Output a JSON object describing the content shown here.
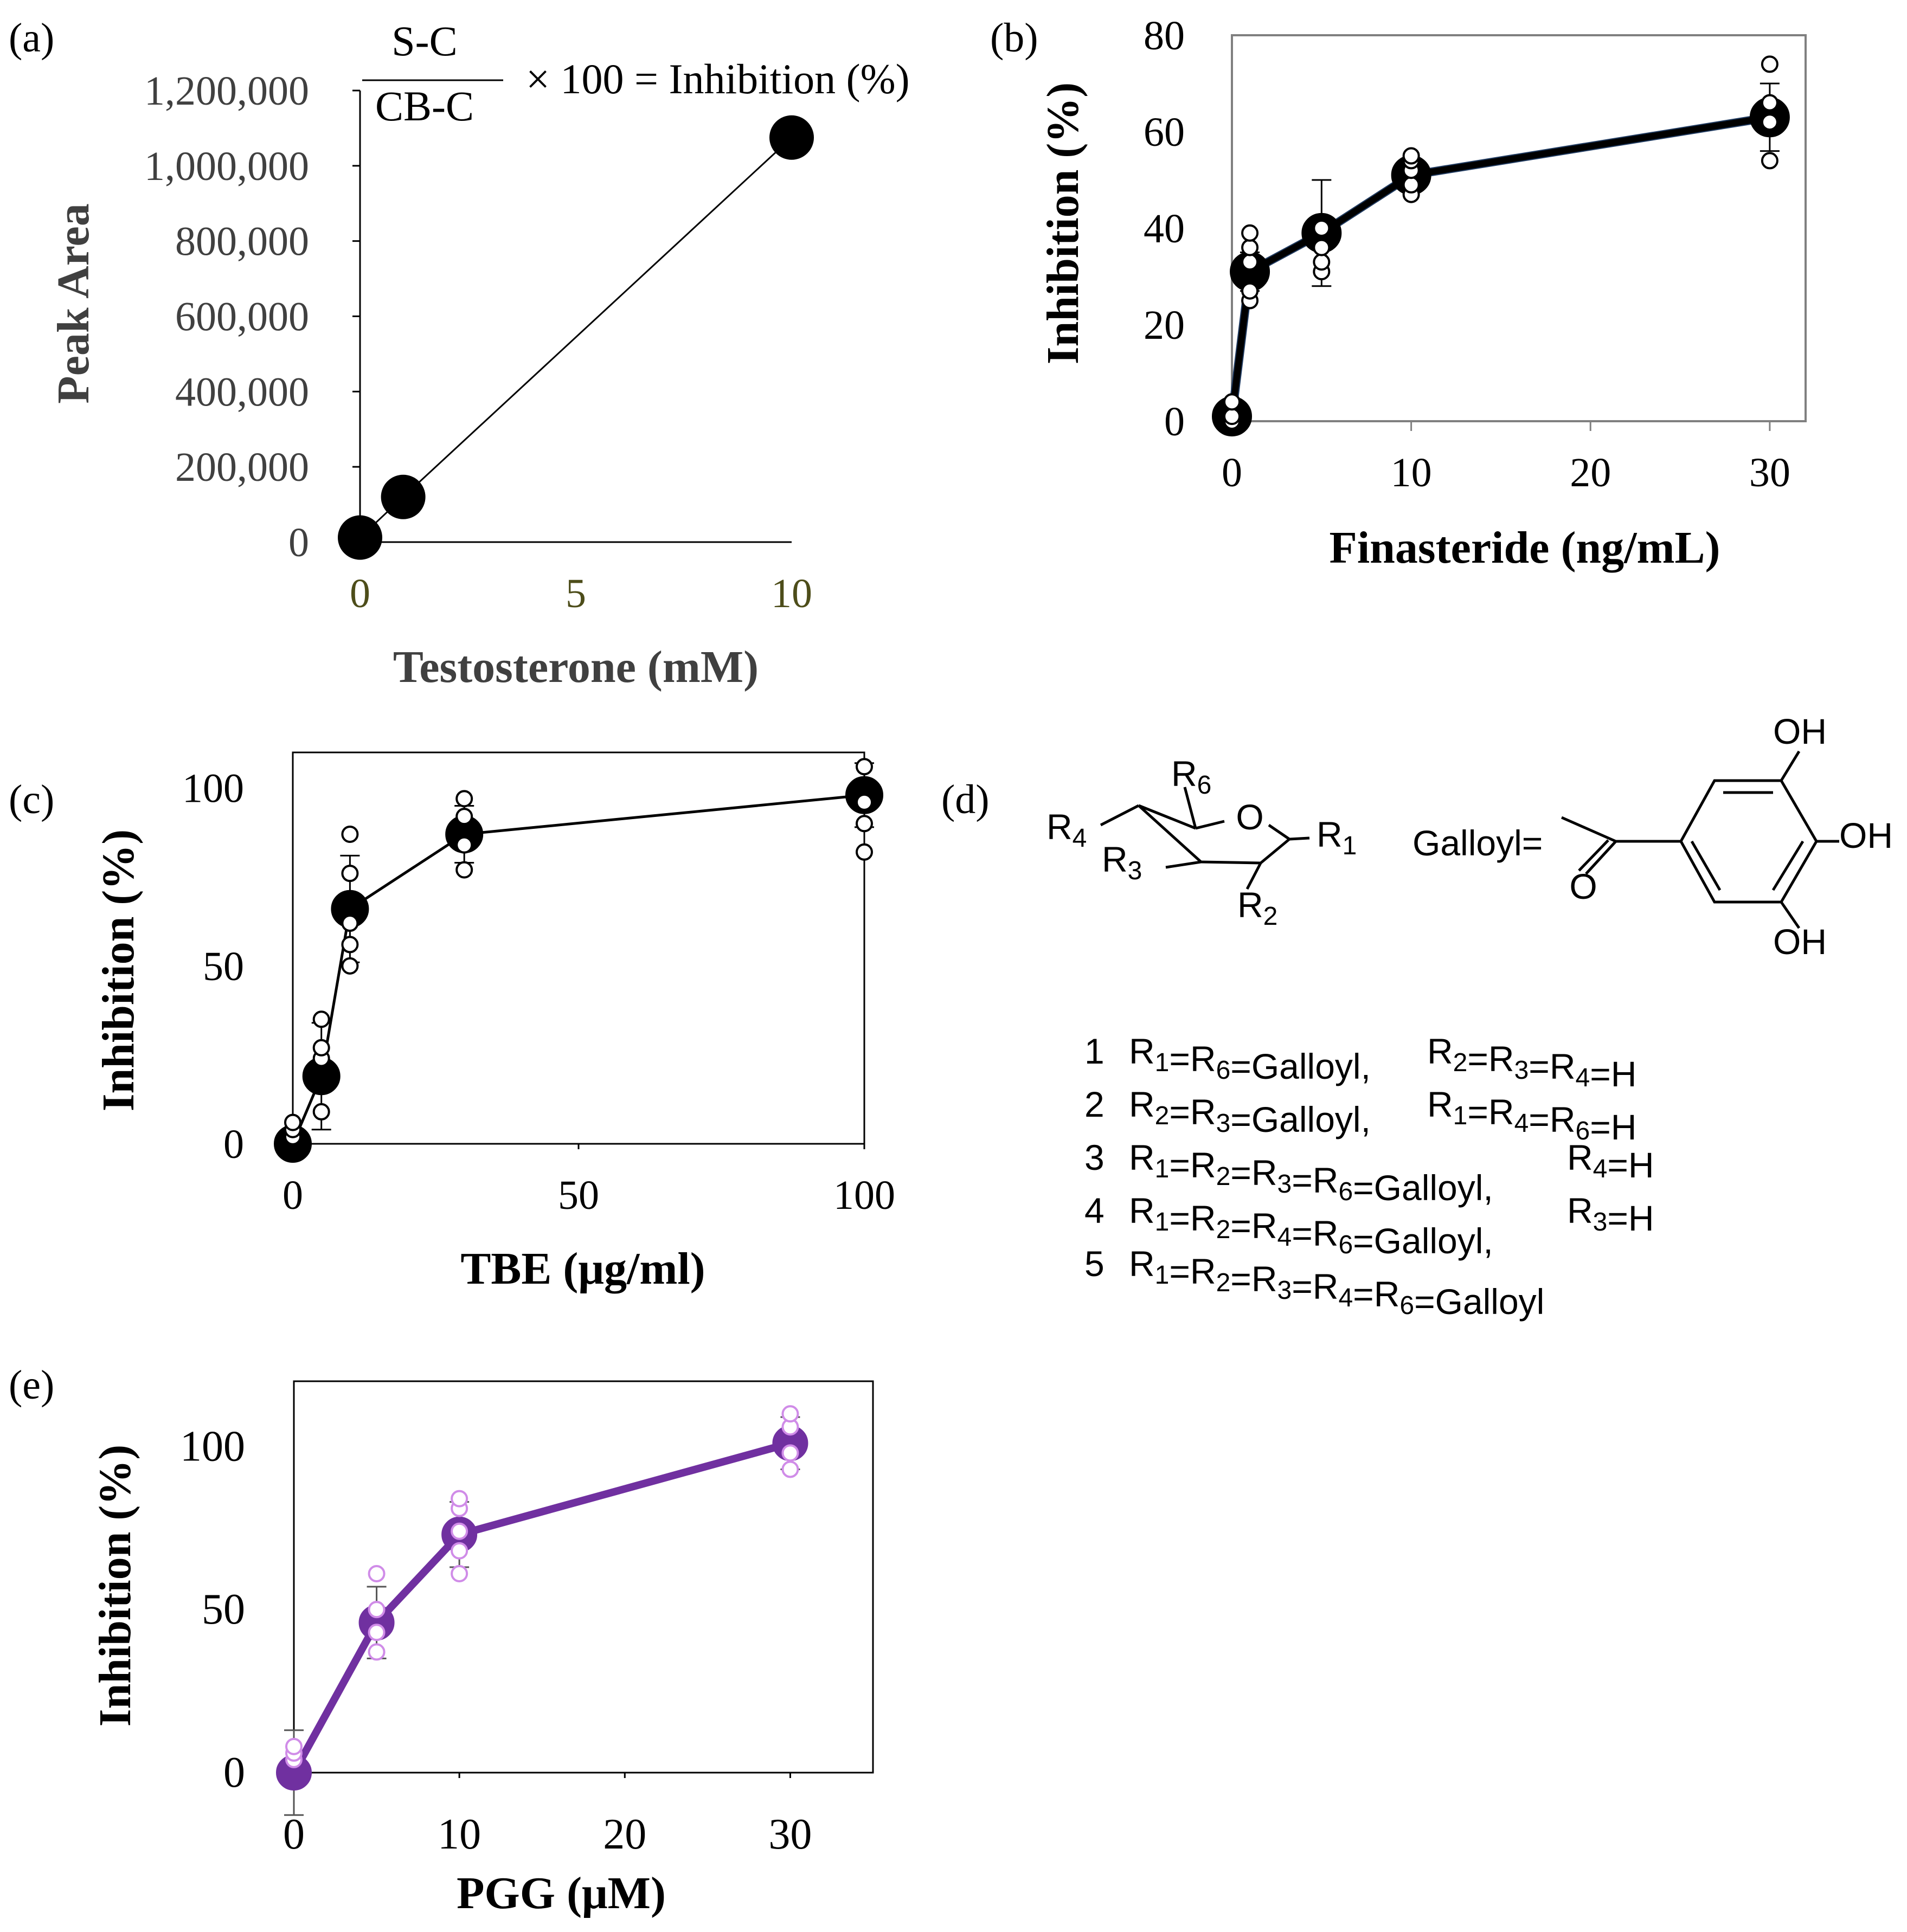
{
  "chart_data": [
    {
      "panel": "(a)",
      "type": "line",
      "xlabel": "Testosterone (mM)",
      "ylabel": "Peak Area",
      "xlim": [
        0,
        10
      ],
      "ylim": [
        0,
        1200000
      ],
      "xticks": [
        "0",
        "5",
        "10"
      ],
      "yticks": [
        "0",
        "200,000",
        "400,000",
        "600,000",
        "800,000",
        "1,000,000",
        "1,200,000"
      ],
      "annotation": {
        "numerator": "S-C",
        "denominator": "CB-C",
        "suffix": "× 100 = Inhibition (%)"
      },
      "series": [
        {
          "name": "peak area",
          "x": [
            0,
            1,
            10
          ],
          "y": [
            12000,
            120000,
            1075000
          ]
        }
      ]
    },
    {
      "panel": "(b)",
      "type": "line",
      "xlabel": "Finasteride (ng/mL)",
      "ylabel": "Inhibition (%)",
      "xlim": [
        0,
        32
      ],
      "ylim": [
        0,
        80
      ],
      "xticks": [
        "0",
        "10",
        "20",
        "30"
      ],
      "yticks": [
        "0",
        "20",
        "40",
        "60",
        "80"
      ],
      "color": "#000000",
      "series": [
        {
          "name": "mean",
          "x": [
            0,
            1,
            5,
            10,
            30
          ],
          "y": [
            1,
            31,
            39,
            51,
            63
          ],
          "err": [
            2,
            4,
            11,
            3,
            7
          ]
        }
      ],
      "replicates": [
        {
          "x": 0,
          "y": [
            0,
            1,
            4
          ]
        },
        {
          "x": 1,
          "y": [
            25,
            27,
            33,
            36,
            39
          ]
        },
        {
          "x": 5,
          "y": [
            31,
            33,
            36,
            40
          ]
        },
        {
          "x": 10,
          "y": [
            47,
            49,
            52,
            54,
            55
          ]
        },
        {
          "x": 30,
          "y": [
            54,
            62,
            66,
            74
          ]
        }
      ]
    },
    {
      "panel": "(c)",
      "type": "line",
      "xlabel": "TBE (μg/ml)",
      "ylabel": "Inhibition (%)",
      "xlim": [
        0,
        100
      ],
      "ylim": [
        0,
        110
      ],
      "xticks": [
        "0",
        "50",
        "100"
      ],
      "yticks": [
        "0",
        "50",
        "100"
      ],
      "color": "#000000",
      "series": [
        {
          "name": "mean",
          "x": [
            0,
            5,
            10,
            30,
            100
          ],
          "y": [
            0,
            19,
            66,
            87,
            98
          ],
          "err": [
            3,
            15,
            15,
            8,
            9
          ]
        }
      ],
      "replicates": [
        {
          "x": 0,
          "y": [
            2,
            4,
            6
          ]
        },
        {
          "x": 5,
          "y": [
            9,
            24,
            27,
            35
          ]
        },
        {
          "x": 10,
          "y": [
            50,
            56,
            62,
            76,
            87
          ]
        },
        {
          "x": 30,
          "y": [
            77,
            84,
            92,
            97
          ]
        },
        {
          "x": 100,
          "y": [
            82,
            90,
            96,
            106
          ]
        }
      ]
    },
    {
      "panel": "(e)",
      "type": "line",
      "xlabel": "PGG (μM)",
      "ylabel": "Inhibition (%)",
      "xlim": [
        0,
        35
      ],
      "ylim": [
        0,
        120
      ],
      "xticks": [
        "0",
        "10",
        "20",
        "30"
      ],
      "yticks": [
        "0",
        "50",
        "100"
      ],
      "color": "#7030a0",
      "replicate_color": "#d08ce8",
      "series": [
        {
          "name": "mean",
          "x": [
            0,
            5,
            10,
            30
          ],
          "y": [
            0,
            46,
            73,
            101
          ],
          "err": [
            13,
            11,
            10,
            8
          ]
        }
      ],
      "replicates": [
        {
          "x": 0,
          "y": [
            4,
            6,
            8
          ]
        },
        {
          "x": 5,
          "y": [
            37,
            43,
            50,
            61
          ]
        },
        {
          "x": 10,
          "y": [
            61,
            68,
            74,
            81,
            84
          ]
        },
        {
          "x": 30,
          "y": [
            93,
            98,
            106,
            110
          ]
        }
      ]
    }
  ],
  "panel_labels": {
    "a": "(a)",
    "b": "(b)",
    "c": "(c)",
    "d": "(d)",
    "e": "(e)"
  },
  "structure": {
    "ring_O": "O",
    "R1": "R1",
    "R2": "R2",
    "R3": "R3",
    "R4": "R4",
    "R6": "R6",
    "galloyl_label": "Galloyl=",
    "carbonyl_O": "O",
    "OH_top": "OH",
    "OH_mid": "OH",
    "OH_bottom": "OH",
    "compounds": [
      {
        "num": "1",
        "a": "R1=R6=Galloyl,",
        "b": "R2=R3=R4=H"
      },
      {
        "num": "2",
        "a": "R2=R3=Galloyl,",
        "b": "R1=R4=R6=H"
      },
      {
        "num": "3",
        "a": "R1=R2=R3=R6=Galloyl,",
        "b": "R4=H"
      },
      {
        "num": "4",
        "a": "R1=R2=R4=R6=Galloyl,",
        "b": "R3=H"
      },
      {
        "num": "5",
        "a": "R1=R2=R3=R4=R6=Galloyl",
        "b": ""
      }
    ]
  }
}
